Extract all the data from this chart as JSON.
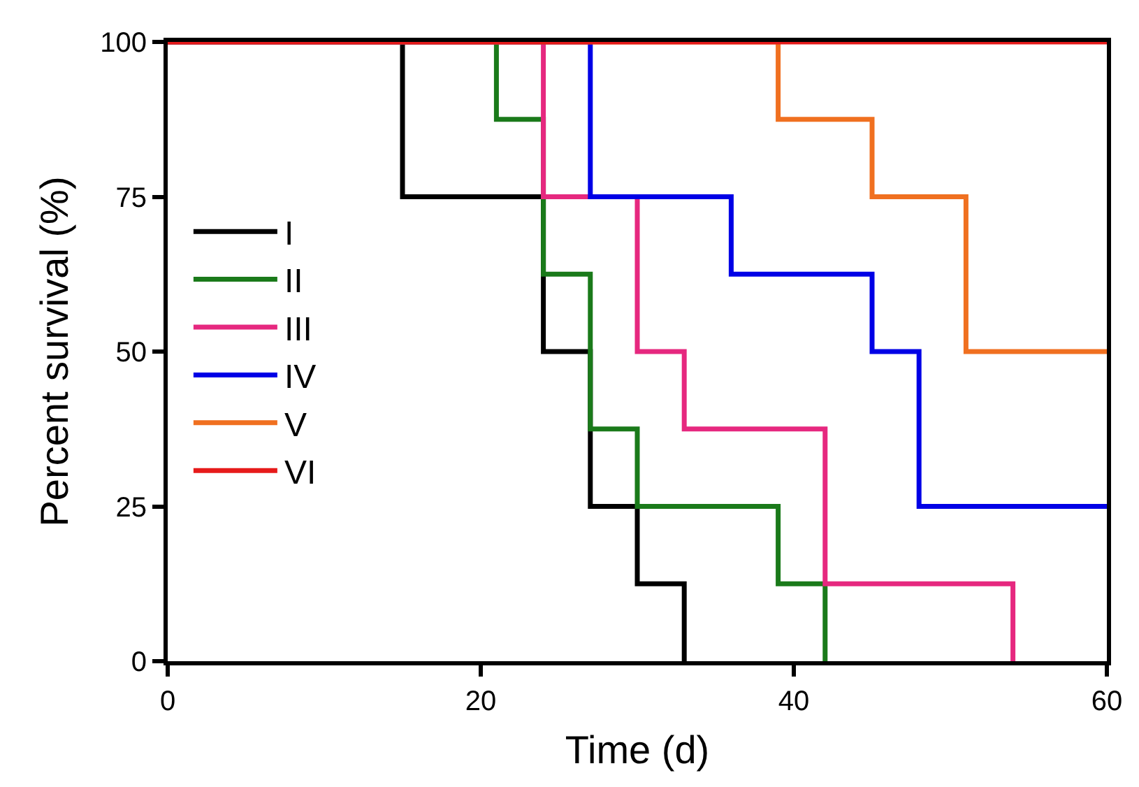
{
  "chart_data": {
    "type": "step",
    "xlabel": "Time (d)",
    "ylabel": "Percent survival (%)",
    "xlim": [
      0,
      60
    ],
    "ylim": [
      0,
      100
    ],
    "xticks": [
      0,
      20,
      40,
      60
    ],
    "yticks": [
      0,
      25,
      50,
      75,
      100
    ],
    "legend": "left",
    "marker": "none",
    "line_style": "solid",
    "series": [
      {
        "name": "I",
        "color": "#000000",
        "x": [
          0,
          15,
          24,
          27,
          30,
          33
        ],
        "values": [
          100,
          75,
          50,
          25,
          12.5,
          0
        ]
      },
      {
        "name": "II",
        "color": "#1a7a1a",
        "x": [
          0,
          21,
          24,
          27,
          30,
          39,
          42
        ],
        "values": [
          100,
          87.5,
          62.5,
          37.5,
          25,
          12.5,
          0
        ]
      },
      {
        "name": "III",
        "color": "#e6287f",
        "x": [
          0,
          24,
          30,
          33,
          42,
          54
        ],
        "values": [
          100,
          75,
          50,
          37.5,
          12.5,
          0
        ]
      },
      {
        "name": "IV",
        "color": "#0000e6",
        "x": [
          0,
          27,
          36,
          45,
          48,
          60
        ],
        "values": [
          100,
          75,
          62.5,
          50,
          25,
          25
        ]
      },
      {
        "name": "V",
        "color": "#f07020",
        "x": [
          0,
          39,
          45,
          51,
          60
        ],
        "values": [
          100,
          87.5,
          75,
          50,
          50
        ]
      },
      {
        "name": "VI",
        "color": "#e61a1a",
        "x": [
          0,
          60
        ],
        "values": [
          100,
          100
        ]
      }
    ]
  }
}
